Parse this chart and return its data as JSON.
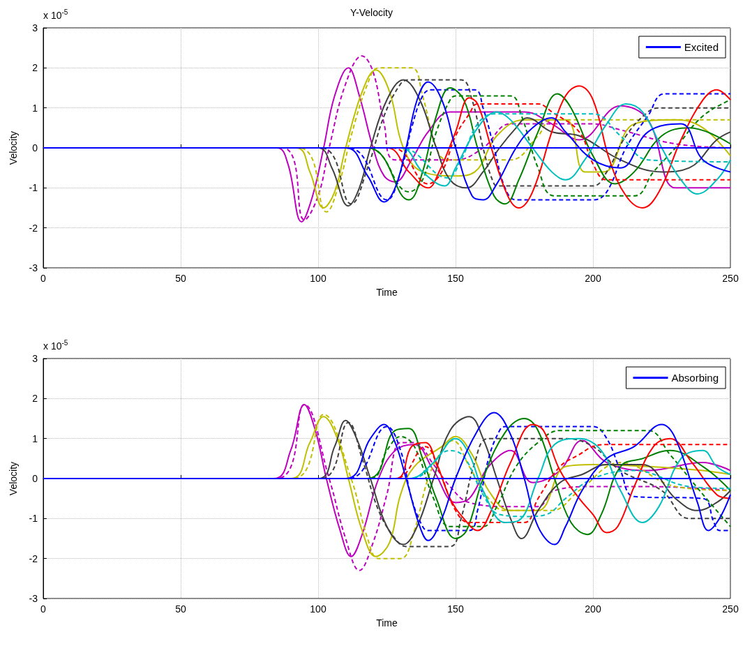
{
  "chart_data": [
    {
      "type": "line",
      "title": "Y-Velocity",
      "xlabel": "Time",
      "ylabel": "Velocity",
      "annotations": [
        "x 10$^{-5}$"
      ],
      "xlim": [
        0,
        250
      ],
      "xticks": [
        0,
        50,
        100,
        150,
        200,
        250
      ],
      "ylim": [
        -3,
        3
      ],
      "yticks": [
        -3,
        -2,
        -1,
        0,
        1,
        2,
        3
      ],
      "grid": true,
      "legend": "top right",
      "marker": "none",
      "series": [
        {
          "name": "Excited",
          "color": "#0000ff",
          "line_style": "solid",
          "x": [
            0,
            110,
            118,
            124,
            128,
            132,
            136,
            140,
            145,
            150,
            156,
            160,
            165,
            172,
            178,
            185,
            190,
            200,
            210,
            220,
            232,
            240,
            250
          ],
          "values": [
            0,
            0,
            -0.7,
            -1.35,
            -1.0,
            0,
            1.2,
            1.65,
            1.2,
            0,
            -1.2,
            -1.3,
            -0.9,
            0,
            0.5,
            0.75,
            0.4,
            -0.3,
            -0.5,
            0.4,
            0.6,
            -0.3,
            -0.6
          ]
        },
        {
          "color": "#bf00bf",
          "line_style": "solid",
          "x": [
            0,
            85,
            89,
            94,
            98,
            102,
            106,
            111,
            115,
            120,
            124,
            128,
            134,
            140,
            148,
            160,
            175,
            185,
            195,
            210,
            220,
            230,
            240,
            250
          ],
          "values": [
            0,
            0,
            -0.4,
            -1.85,
            -1.2,
            0,
            1.3,
            2.0,
            1.3,
            0,
            -0.7,
            -0.85,
            -0.3,
            0.4,
            0.9,
            0.9,
            0.9,
            0.6,
            0.2,
            1.05,
            0.7,
            -1.0,
            -1.0,
            -1.0
          ]
        },
        {
          "color": "#bf00bf",
          "line_style": "dashed",
          "x": [
            0,
            87,
            95,
            100,
            104,
            110,
            116,
            120,
            124,
            128,
            150,
            160,
            170,
            200,
            210,
            230,
            250
          ],
          "values": [
            0,
            0,
            -1.8,
            -1.2,
            0,
            1.6,
            2.3,
            1.9,
            0.6,
            -0.3,
            -0.3,
            0,
            0.6,
            0.6,
            0.45,
            0.1,
            0
          ]
        },
        {
          "color": "#bfbf00",
          "line_style": "solid",
          "x": [
            0,
            92,
            97,
            102,
            106,
            110,
            116,
            121,
            126,
            131,
            138,
            150,
            157,
            165,
            175,
            190,
            197,
            204,
            215,
            230,
            240,
            250
          ],
          "values": [
            0,
            0,
            -0.6,
            -1.5,
            -1.1,
            0,
            1.4,
            1.95,
            1.4,
            0,
            -0.6,
            -0.7,
            -0.6,
            0.3,
            0.7,
            0.7,
            -0.6,
            -0.6,
            0.6,
            0.7,
            0.5,
            -0.2
          ]
        },
        {
          "color": "#bfbf00",
          "line_style": "dashed",
          "x": [
            0,
            93,
            103,
            108,
            112,
            118,
            122,
            134,
            138,
            143,
            147,
            170,
            180,
            185,
            250
          ],
          "values": [
            0,
            0,
            -1.6,
            -0.8,
            0.3,
            1.6,
            2.0,
            2.0,
            1.3,
            0,
            -0.3,
            -0.3,
            0.3,
            0.7,
            0.7
          ]
        },
        {
          "color": "#404040",
          "line_style": "solid",
          "x": [
            0,
            100,
            105,
            111,
            115,
            119,
            125,
            131,
            137,
            143,
            148,
            154,
            160,
            166,
            172,
            176,
            185,
            195,
            210,
            225,
            235,
            245,
            250
          ],
          "values": [
            0,
            0,
            -0.5,
            -1.45,
            -1.0,
            0,
            1.2,
            1.7,
            1.2,
            0,
            -0.8,
            -1.0,
            -0.6,
            0,
            0.5,
            0.75,
            0.4,
            0.3,
            -0.3,
            -0.6,
            -0.5,
            0.2,
            0.4
          ]
        },
        {
          "color": "#404040",
          "line_style": "dashed",
          "x": [
            0,
            101,
            112,
            118,
            124,
            130,
            133,
            152,
            156,
            160,
            164,
            166,
            200,
            205,
            212,
            220,
            224,
            250
          ],
          "values": [
            0,
            0,
            -1.4,
            -0.5,
            0.8,
            1.6,
            1.7,
            1.7,
            1.2,
            0,
            -0.9,
            -0.95,
            -0.95,
            -0.6,
            0.3,
            0.9,
            1.0,
            1.0
          ]
        },
        {
          "color": "#0000ff",
          "line_style": "dashed",
          "x": [
            0,
            111,
            125,
            130,
            134,
            138,
            141,
            157,
            160,
            164,
            168,
            172,
            200,
            205,
            212,
            220,
            226,
            250
          ],
          "values": [
            0,
            0,
            -1.3,
            -0.6,
            0.5,
            1.3,
            1.45,
            1.45,
            1.0,
            0,
            -1.0,
            -1.3,
            -1.3,
            -1.1,
            0,
            0.8,
            1.35,
            1.35
          ]
        },
        {
          "color": "#008000",
          "line_style": "solid",
          "x": [
            0,
            118,
            133,
            138,
            143,
            148,
            153,
            158,
            164,
            168,
            173,
            180,
            187,
            192,
            200,
            208,
            215,
            225,
            235,
            250
          ],
          "values": [
            0,
            0,
            -1.3,
            -0.6,
            0.8,
            1.5,
            1.2,
            0,
            -1.2,
            -1.4,
            -0.8,
            0.4,
            1.35,
            1.0,
            -0.2,
            -0.9,
            -0.6,
            0.3,
            0.5,
            0.1
          ]
        },
        {
          "color": "#008000",
          "line_style": "dashed",
          "x": [
            0,
            118,
            133,
            138,
            143,
            148,
            150,
            170,
            174,
            180,
            186,
            215,
            222,
            230,
            240,
            250
          ],
          "values": [
            0,
            0,
            -1.1,
            -0.8,
            0.4,
            1.2,
            1.3,
            1.3,
            0.8,
            -0.5,
            -1.2,
            -1.2,
            -0.6,
            0,
            0.8,
            1.2
          ]
        },
        {
          "color": "#ff0000",
          "line_style": "solid",
          "x": [
            0,
            125,
            133,
            140,
            144,
            150,
            155,
            158,
            163,
            169,
            173,
            178,
            185,
            190,
            195,
            200,
            206,
            212,
            218,
            224,
            232,
            240,
            245,
            250
          ],
          "values": [
            0,
            0,
            -0.6,
            -1.0,
            -0.6,
            0.4,
            1.25,
            1.1,
            0,
            -1.2,
            -1.5,
            -1.1,
            0.4,
            1.3,
            1.55,
            1.2,
            -0.3,
            -1.2,
            -1.5,
            -1.1,
            0.2,
            1.2,
            1.45,
            1.2
          ]
        },
        {
          "color": "#ff0000",
          "line_style": "dashed",
          "x": [
            0,
            127,
            140,
            145,
            150,
            155,
            158,
            180,
            185,
            195,
            200,
            205,
            250
          ],
          "values": [
            0,
            0,
            -0.9,
            -0.6,
            0.3,
            0.85,
            1.1,
            1.1,
            0.9,
            0.4,
            -0.4,
            -0.8,
            -0.8
          ]
        },
        {
          "color": "#00bfbf",
          "line_style": "solid",
          "x": [
            0,
            130,
            138,
            146,
            150,
            158,
            165,
            170,
            178,
            185,
            190,
            197,
            205,
            212,
            218,
            225,
            232,
            238,
            245,
            250
          ],
          "values": [
            0,
            0,
            -0.6,
            -0.95,
            -0.5,
            0.5,
            0.9,
            0.7,
            0,
            -0.6,
            -0.8,
            -0.3,
            0.6,
            1.1,
            0.9,
            0,
            -0.8,
            -1.15,
            -0.8,
            -0.3
          ]
        },
        {
          "color": "#00bfbf",
          "line_style": "dashed",
          "x": [
            0,
            130,
            147,
            152,
            158,
            164,
            200,
            210,
            220,
            250
          ],
          "values": [
            0,
            0,
            -0.75,
            -0.3,
            0.6,
            0.85,
            0.85,
            0.3,
            -0.3,
            -0.35
          ]
        },
        {
          "color": "#0000ff",
          "line_style": "solid",
          "x": [
            0,
            250
          ],
          "values": [
            0,
            0
          ]
        }
      ]
    },
    {
      "type": "line",
      "xlabel": "Time",
      "ylabel": "Velocity",
      "annotations": [
        "x 10$^{-5}$"
      ],
      "xlim": [
        0,
        250
      ],
      "xticks": [
        0,
        50,
        100,
        150,
        200,
        250
      ],
      "ylim": [
        -3,
        3
      ],
      "yticks": [
        -3,
        -2,
        -1,
        0,
        1,
        2,
        3
      ],
      "grid": true,
      "legend": "top right",
      "marker": "none",
      "series": [
        {
          "name": "Absorbing",
          "color": "#0000ff",
          "line_style": "solid",
          "x": [
            0,
            110,
            119,
            124,
            128,
            132,
            137,
            140,
            145,
            150,
            158,
            164,
            170,
            175,
            180,
            186,
            190,
            196,
            205,
            215,
            225,
            230,
            238,
            242,
            246,
            250
          ],
          "values": [
            0,
            0,
            1.0,
            1.35,
            0.9,
            0,
            -1.2,
            -1.55,
            -1.0,
            0,
            1.2,
            1.65,
            1.1,
            0,
            -1.2,
            -1.65,
            -1.2,
            -0.3,
            0.5,
            0.8,
            1.35,
            1.0,
            -0.6,
            -1.3,
            -1.0,
            -0.4
          ]
        },
        {
          "color": "#bf00bf",
          "line_style": "solid",
          "x": [
            0,
            84,
            90,
            95,
            99,
            103,
            108,
            112,
            116,
            122,
            128,
            135,
            142,
            150,
            155,
            162,
            170,
            178,
            188,
            196,
            205,
            220,
            240,
            250
          ],
          "values": [
            0,
            0,
            0.7,
            1.85,
            1.2,
            0,
            -1.3,
            -1.95,
            -1.4,
            0,
            0.7,
            0.85,
            0.2,
            -0.6,
            -0.5,
            0.3,
            0.7,
            -0.1,
            0.2,
            0.95,
            0.4,
            0.2,
            0.4,
            0.2
          ]
        },
        {
          "color": "#bf00bf",
          "line_style": "dashed",
          "x": [
            0,
            85,
            95,
            104,
            110,
            115,
            120,
            125,
            130,
            135,
            142,
            148,
            155,
            170,
            180,
            186,
            200,
            220,
            250
          ],
          "values": [
            0,
            0,
            1.85,
            0,
            -1.5,
            -2.3,
            -1.6,
            -0.4,
            0.9,
            0.9,
            0.35,
            -0.2,
            -0.6,
            -0.7,
            -0.7,
            -0.3,
            -0.2,
            -0.2,
            -0.3
          ]
        },
        {
          "color": "#bfbf00",
          "line_style": "solid",
          "x": [
            0,
            90,
            97,
            102,
            107,
            111,
            116,
            121,
            126,
            130,
            135,
            145,
            150,
            156,
            162,
            170,
            180,
            190,
            200,
            220,
            240,
            250
          ],
          "values": [
            0,
            0,
            0.9,
            1.55,
            1.0,
            0,
            -1.3,
            -1.95,
            -1.6,
            -0.4,
            0.3,
            0.8,
            1.05,
            0.6,
            -0.3,
            -0.8,
            -0.8,
            0.3,
            0.35,
            0.3,
            0.2,
            0.1
          ]
        },
        {
          "color": "#bfbf00",
          "line_style": "dashed",
          "x": [
            0,
            91,
            102,
            112,
            118,
            122,
            130,
            135,
            140,
            145,
            149,
            155,
            162,
            168,
            185,
            195,
            210,
            230,
            250
          ],
          "values": [
            0,
            0,
            1.6,
            0,
            -1.5,
            -2.0,
            -2.0,
            -1.3,
            0,
            0.7,
            0.95,
            0.3,
            -0.5,
            -0.8,
            -0.8,
            -0.3,
            0.4,
            -0.2,
            -0.3
          ]
        },
        {
          "color": "#404040",
          "line_style": "solid",
          "x": [
            0,
            100,
            106,
            110,
            114,
            119,
            125,
            131,
            136,
            142,
            148,
            155,
            160,
            165,
            170,
            174,
            180,
            188,
            196,
            205,
            218,
            230,
            238,
            245,
            250
          ],
          "values": [
            0,
            0,
            0.8,
            1.45,
            1.0,
            0,
            -1.2,
            -1.65,
            -1.2,
            0,
            1.2,
            1.55,
            1.0,
            0,
            -1.0,
            -1.5,
            -0.8,
            -0.1,
            0.1,
            0.35,
            0.35,
            -0.5,
            -0.8,
            -0.6,
            -0.3
          ]
        },
        {
          "color": "#404040",
          "line_style": "dashed",
          "x": [
            0,
            101,
            111,
            116,
            122,
            128,
            132,
            148,
            152,
            157,
            162,
            190,
            200,
            210,
            225,
            235,
            250
          ],
          "values": [
            0,
            0,
            1.4,
            0.5,
            -0.8,
            -1.5,
            -1.7,
            -1.7,
            -1.0,
            0.4,
            1.0,
            1.0,
            0.8,
            0.2,
            -0.3,
            -1.0,
            -1.0
          ]
        },
        {
          "color": "#0000ff",
          "line_style": "dashed",
          "x": [
            0,
            111,
            125,
            130,
            134,
            138,
            140,
            155,
            158,
            162,
            166,
            168,
            200,
            205,
            210,
            215,
            240,
            244,
            246,
            250
          ],
          "values": [
            0,
            0,
            1.3,
            0.7,
            -0.5,
            -1.2,
            -1.3,
            -1.3,
            -0.8,
            0.5,
            1.2,
            1.3,
            1.3,
            1.0,
            0.2,
            -0.45,
            -0.5,
            -1.1,
            -1.3,
            -1.3
          ]
        },
        {
          "color": "#008000",
          "line_style": "solid",
          "x": [
            0,
            118,
            128,
            133,
            138,
            143,
            150,
            154,
            160,
            168,
            175,
            180,
            186,
            192,
            198,
            203,
            210,
            218,
            228,
            240,
            250
          ],
          "values": [
            0,
            0,
            1.2,
            1.25,
            0.5,
            -0.5,
            -1.5,
            -1.3,
            0,
            1.15,
            1.5,
            1.2,
            0,
            -1.1,
            -1.4,
            -0.9,
            0.3,
            0.5,
            0.7,
            0.3,
            -0.3
          ]
        },
        {
          "color": "#008000",
          "line_style": "dashed",
          "x": [
            0,
            119,
            125,
            130,
            135,
            142,
            148,
            160,
            165,
            172,
            180,
            188,
            220,
            228,
            240,
            250
          ],
          "values": [
            0,
            0,
            0.7,
            1.05,
            0.8,
            -0.5,
            -1.2,
            -1.2,
            -0.7,
            0.3,
            0.9,
            1.2,
            1.2,
            0.6,
            -0.4,
            -1.2
          ]
        },
        {
          "color": "#ff0000",
          "line_style": "solid",
          "x": [
            0,
            128,
            134,
            139,
            143,
            148,
            153,
            158,
            163,
            170,
            178,
            182,
            188,
            195,
            200,
            205,
            209,
            215,
            222,
            228,
            236,
            245,
            250
          ],
          "values": [
            0,
            0,
            0.8,
            0.9,
            0.4,
            -0.5,
            -1.0,
            -1.3,
            -0.8,
            0.4,
            1.35,
            1.2,
            0.2,
            -0.5,
            -0.9,
            -1.35,
            -1.2,
            -0.2,
            0.8,
            1.0,
            0.4,
            -0.4,
            -0.5
          ]
        },
        {
          "color": "#ff0000",
          "line_style": "dashed",
          "x": [
            0,
            128,
            139,
            144,
            150,
            155,
            175,
            180,
            188,
            195,
            200,
            205,
            250
          ],
          "values": [
            0,
            0,
            0.8,
            0.2,
            -0.8,
            -1.1,
            -1.1,
            -0.5,
            0.3,
            0.6,
            0.8,
            0.85,
            0.85
          ]
        },
        {
          "color": "#00bfbf",
          "line_style": "solid",
          "x": [
            0,
            133,
            142,
            150,
            155,
            160,
            168,
            173,
            180,
            186,
            195,
            203,
            210,
            218,
            224,
            232,
            240,
            245,
            250
          ],
          "values": [
            0,
            0,
            0.4,
            1.0,
            0.6,
            -0.3,
            -1.1,
            -1.05,
            0,
            0.85,
            1.0,
            0.7,
            -0.3,
            -1.1,
            -0.7,
            0.5,
            0.7,
            0.3,
            0.1
          ]
        },
        {
          "color": "#00bfbf",
          "line_style": "dashed",
          "x": [
            0,
            134,
            148,
            153,
            160,
            166,
            176,
            183,
            190,
            200,
            215,
            235,
            250
          ],
          "values": [
            0,
            0,
            0.7,
            0.55,
            -0.4,
            -0.9,
            -0.95,
            -0.9,
            -0.5,
            0,
            0.2,
            -0.2,
            -0.25
          ]
        },
        {
          "color": "#0000ff",
          "line_style": "solid",
          "x": [
            0,
            250
          ],
          "values": [
            0,
            0
          ]
        }
      ]
    }
  ]
}
